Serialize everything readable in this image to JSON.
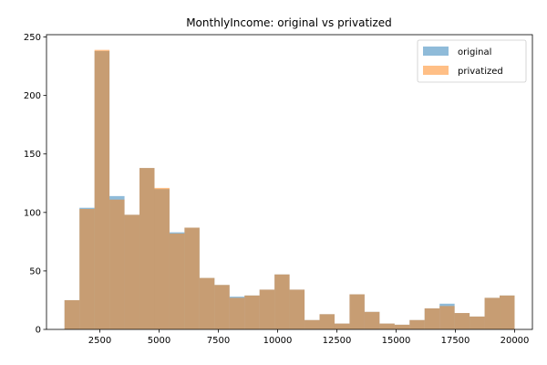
{
  "chart_data": {
    "type": "bar",
    "subtype": "overlapping-histogram",
    "title": "MonthlyIncome: original vs privatized",
    "xlabel": "",
    "ylabel": "",
    "xlim": [
      250,
      20750
    ],
    "ylim": [
      0,
      252
    ],
    "xticks": [
      2500,
      5000,
      7500,
      10000,
      12500,
      15000,
      17500,
      20000
    ],
    "yticks": [
      0,
      50,
      100,
      150,
      200,
      250
    ],
    "bin_edges": [
      1009,
      1642,
      2275,
      2908,
      3541,
      4174,
      4807,
      5440,
      6073,
      6706,
      7339,
      7972,
      8605,
      9238,
      9871,
      10504,
      11137,
      11770,
      12403,
      13036,
      13669,
      14302,
      14935,
      15568,
      16201,
      16834,
      17467,
      18100,
      18733,
      19366,
      19999
    ],
    "legend_position": "upper right",
    "grid": false,
    "series": [
      {
        "name": "original",
        "color": "#1f77b4",
        "opacity": 0.5,
        "values": [
          25,
          104,
          238,
          114,
          98,
          138,
          120,
          83,
          87,
          44,
          38,
          28,
          29,
          34,
          47,
          34,
          8,
          13,
          5,
          30,
          15,
          5,
          4,
          8,
          18,
          22,
          14,
          11,
          27,
          29
        ]
      },
      {
        "name": "privatized",
        "color": "#ff7f0e",
        "opacity": 0.5,
        "values": [
          25,
          103,
          239,
          111,
          98,
          138,
          121,
          82,
          87,
          44,
          38,
          27,
          29,
          34,
          47,
          34,
          8,
          13,
          5,
          30,
          15,
          5,
          4,
          8,
          18,
          20,
          14,
          11,
          27,
          29
        ]
      }
    ]
  }
}
